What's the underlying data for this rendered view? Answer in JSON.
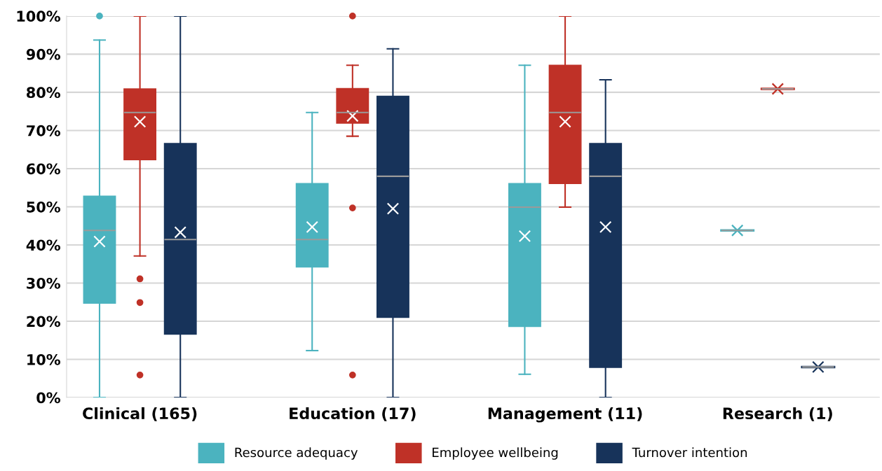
{
  "chart_data": {
    "type": "box",
    "categories": [
      "Clinical (165)",
      "Education (17)",
      "Management (11)",
      "Research (1)"
    ],
    "series": [
      {
        "name": "Resource adequacy",
        "color": "#4bb3bf",
        "boxes": [
          {
            "low": 0,
            "q1": 24.7,
            "median": 43.8,
            "q3": 52.8,
            "high": 93.7,
            "mean": 40.9,
            "outliers": [
              100
            ]
          },
          {
            "low": 12.3,
            "q1": 34.2,
            "median": 41.4,
            "q3": 56.1,
            "high": 74.7,
            "mean": 44.7
          },
          {
            "low": 6.1,
            "q1": 18.6,
            "median": 49.9,
            "q3": 56.1,
            "high": 87.1,
            "mean": 42.3
          },
          {
            "low": 43.8,
            "q1": 43.8,
            "median": 43.8,
            "q3": 43.8,
            "high": 43.8,
            "mean": 43.8
          }
        ]
      },
      {
        "name": "Employee wellbeing",
        "color": "#bf3127",
        "boxes": [
          {
            "low": 37.1,
            "q1": 62.3,
            "median": 74.7,
            "q3": 80.9,
            "high": 100,
            "mean": 72.3,
            "outliers": [
              31.1,
              24.9,
              5.9
            ]
          },
          {
            "low": 68.5,
            "q1": 71.9,
            "median": 74.7,
            "q3": 81.0,
            "high": 87.1,
            "mean": 73.8,
            "outliers": [
              100,
              49.7,
              5.9
            ]
          },
          {
            "low": 49.9,
            "q1": 56.1,
            "median": 74.7,
            "q3": 87.1,
            "high": 100,
            "mean": 72.3
          },
          {
            "low": 80.9,
            "q1": 80.9,
            "median": 80.9,
            "q3": 80.9,
            "high": 80.9,
            "mean": 80.9
          }
        ]
      },
      {
        "name": "Turnover intention",
        "color": "#17335a",
        "boxes": [
          {
            "low": 0,
            "q1": 16.6,
            "median": 41.4,
            "q3": 66.6,
            "high": 100,
            "mean": 43.3
          },
          {
            "low": 0,
            "q1": 21.0,
            "median": 58.0,
            "q3": 79.0,
            "high": 91.4,
            "mean": 49.5
          },
          {
            "low": 0,
            "q1": 7.9,
            "median": 58.0,
            "q3": 66.6,
            "high": 83.3,
            "mean": 44.7
          },
          {
            "low": 8.0,
            "q1": 8.0,
            "median": 8.0,
            "q3": 8.0,
            "high": 8.0,
            "mean": 8.0
          }
        ]
      }
    ],
    "ylim": [
      0,
      100
    ],
    "yticks": [
      {
        "value": 0,
        "label": "0%"
      },
      {
        "value": 10,
        "label": "10%"
      },
      {
        "value": 20,
        "label": "20%"
      },
      {
        "value": 30,
        "label": "30%"
      },
      {
        "value": 40,
        "label": "40%"
      },
      {
        "value": 50,
        "label": "50%"
      },
      {
        "value": 60,
        "label": "60%"
      },
      {
        "value": 70,
        "label": "70%"
      },
      {
        "value": 80,
        "label": "80%"
      },
      {
        "value": 90,
        "label": "90%"
      },
      {
        "value": 100,
        "label": "100%"
      }
    ],
    "grid": "y",
    "legend": "bottom"
  }
}
